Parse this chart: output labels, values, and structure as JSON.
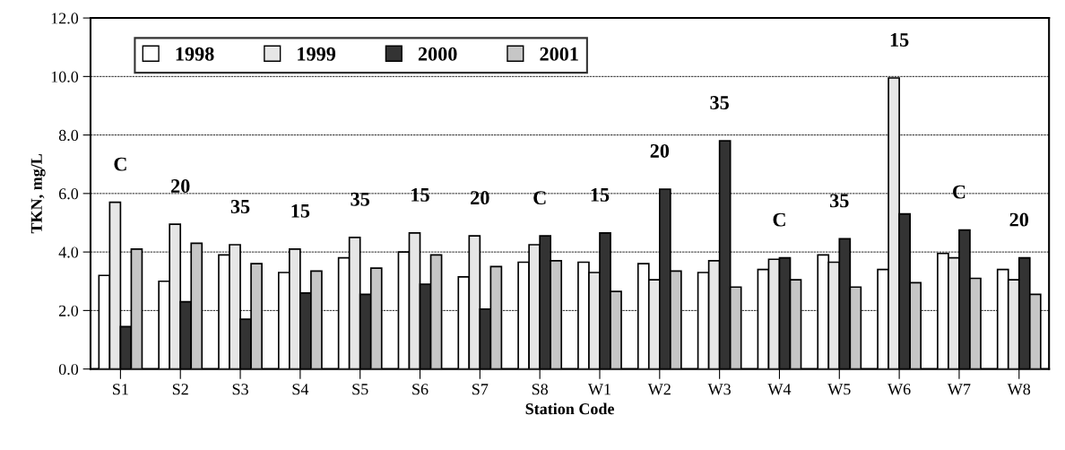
{
  "chart_data": {
    "type": "bar",
    "xlabel": "Station Code",
    "ylabel": "TKN, mg/L",
    "categories": [
      "S1",
      "S2",
      "S3",
      "S4",
      "S5",
      "S6",
      "S7",
      "S8",
      "W1",
      "W2",
      "W3",
      "W4",
      "W5",
      "W6",
      "W7",
      "W8"
    ],
    "series": [
      {
        "name": "1998",
        "color": "#ffffff",
        "values": [
          3.2,
          3.0,
          3.9,
          3.3,
          3.8,
          4.0,
          3.15,
          3.65,
          3.65,
          3.6,
          3.3,
          3.4,
          3.9,
          3.4,
          3.95,
          3.4
        ]
      },
      {
        "name": "1999",
        "color": "#e6e6e6",
        "values": [
          5.7,
          4.95,
          4.25,
          4.1,
          4.5,
          4.65,
          4.55,
          4.25,
          3.3,
          3.05,
          3.7,
          3.75,
          3.65,
          9.95,
          3.8,
          3.05
        ]
      },
      {
        "name": "2000",
        "color": "#333333",
        "values": [
          1.45,
          2.3,
          1.7,
          2.6,
          2.55,
          2.9,
          2.05,
          4.55,
          4.65,
          6.15,
          7.8,
          3.8,
          4.45,
          5.3,
          4.75,
          3.8
        ]
      },
      {
        "name": "2001",
        "color": "#c6c6c6",
        "values": [
          4.1,
          4.3,
          3.6,
          3.35,
          3.45,
          3.9,
          3.5,
          3.7,
          2.65,
          3.35,
          2.8,
          3.05,
          2.8,
          2.95,
          3.1,
          2.55
        ]
      }
    ],
    "ylim": [
      0,
      12
    ],
    "yticks": [
      {
        "value": 0,
        "label": "0.0"
      },
      {
        "value": 2,
        "label": "2.0"
      },
      {
        "value": 4,
        "label": "4.0"
      },
      {
        "value": 6,
        "label": "6.0"
      },
      {
        "value": 8,
        "label": "8.0"
      },
      {
        "value": 10,
        "label": "10.0"
      },
      {
        "value": 12,
        "label": "12.0"
      }
    ],
    "grid": "y",
    "legend": "top left",
    "annotations": [
      "C",
      "20",
      "35",
      "15",
      "35",
      "15",
      "20",
      "C",
      "15",
      "20",
      "35",
      "C",
      "35",
      "15",
      "C",
      "20"
    ]
  }
}
